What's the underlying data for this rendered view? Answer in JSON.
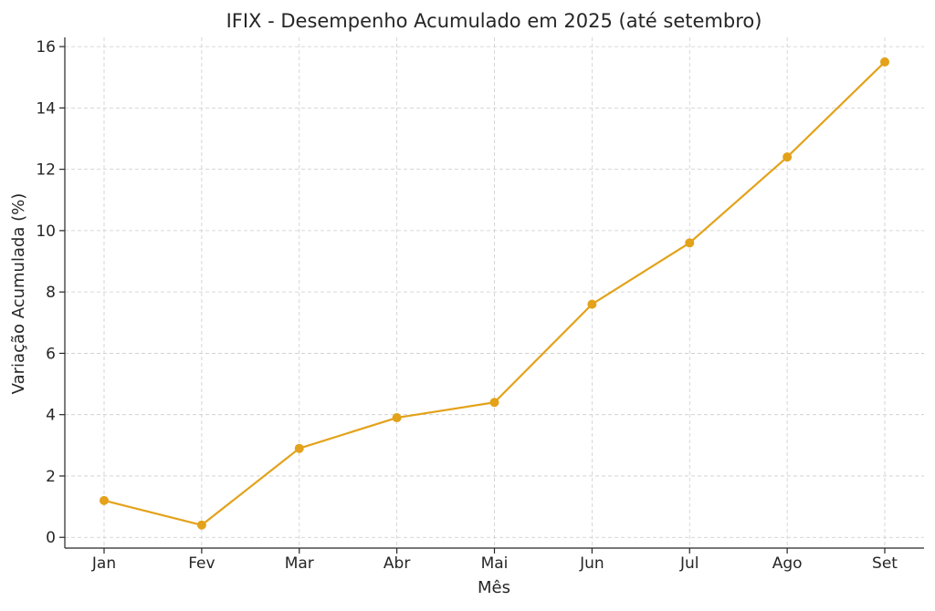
{
  "chart_data": {
    "type": "line",
    "title": "IFIX - Desempenho Acumulado em 2025 (até setembro)",
    "xlabel": "Mês",
    "ylabel": "Variação Acumulada (%)",
    "categories": [
      "Jan",
      "Fev",
      "Mar",
      "Abr",
      "Mai",
      "Jun",
      "Jul",
      "Ago",
      "Set"
    ],
    "values": [
      1.2,
      0.4,
      2.9,
      3.9,
      4.4,
      7.6,
      9.6,
      12.4,
      15.5
    ],
    "ylim": [
      -0.35,
      16.3
    ],
    "yticks": [
      0,
      2,
      4,
      6,
      8,
      10,
      12,
      14,
      16
    ],
    "grid": true,
    "line_color": "#e3a21a",
    "grid_color": "#cccccc",
    "axis_color": "#262626"
  }
}
